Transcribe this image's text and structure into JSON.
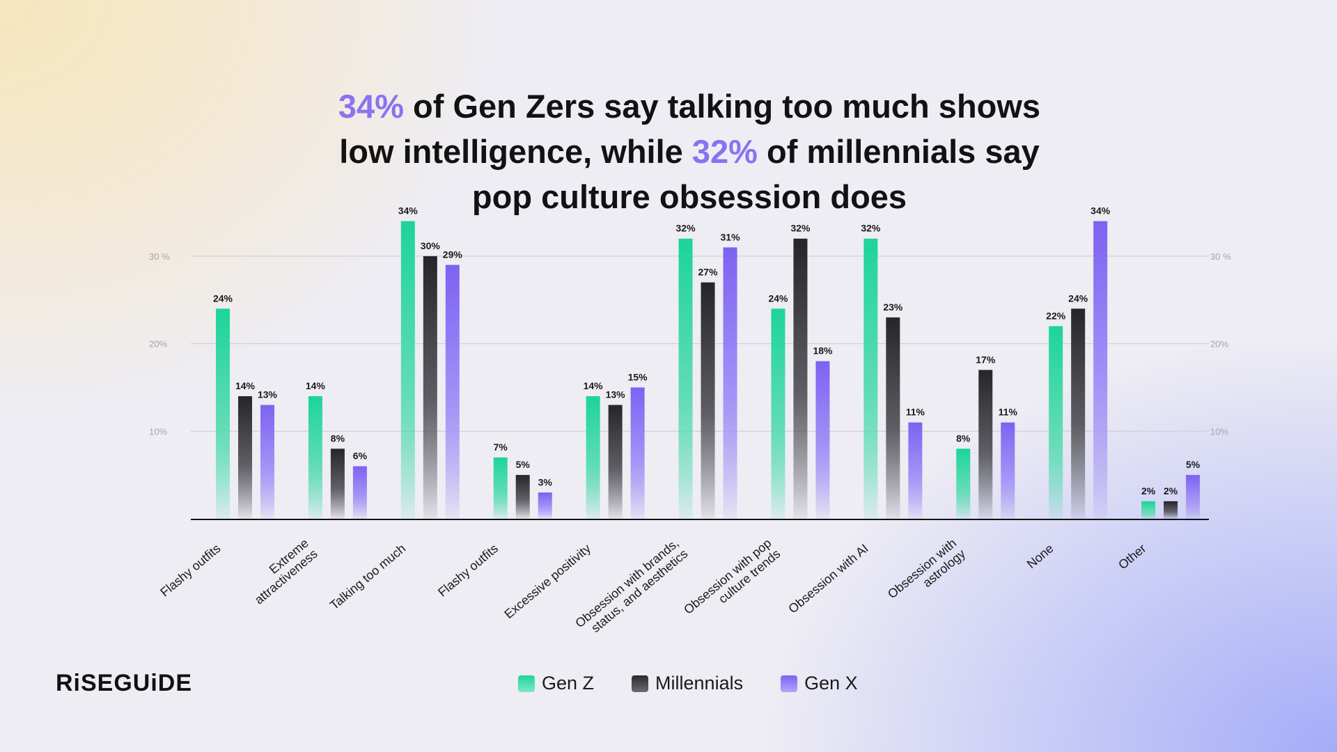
{
  "headline": {
    "pct1": "34%",
    "part1": " of Gen Zers say talking too much shows low intelligence, while ",
    "pct2": "32%",
    "part2": " of millennials say pop culture obsession does"
  },
  "brand": {
    "logo_text": "RiSEGUiDE"
  },
  "legend": {
    "genz_label": "Gen Z",
    "millennials_label": "Millennials",
    "genx_label": "Gen X"
  },
  "colors": {
    "genz": "#1dd49a",
    "millennials": "#2a2a2e",
    "genx": "#7d62f2",
    "highlight": "#8a72f0"
  },
  "chart_data": {
    "type": "bar",
    "categories": [
      [
        "Flashy outfits"
      ],
      [
        "Extreme",
        "attractiveness"
      ],
      [
        "Talking too much"
      ],
      [
        "Flashy outfits"
      ],
      [
        "Excessive positivity"
      ],
      [
        "Obsession with brands,",
        "status, and aesthetics"
      ],
      [
        "Obsession with pop",
        "culture trends"
      ],
      [
        "Obsession with AI"
      ],
      [
        "Obsession with",
        "astrology"
      ],
      [
        "None"
      ],
      [
        "Other"
      ]
    ],
    "series": [
      {
        "name": "Gen Z",
        "values": [
          24,
          14,
          34,
          7,
          14,
          32,
          24,
          32,
          8,
          22,
          2
        ]
      },
      {
        "name": "Millennials",
        "values": [
          14,
          8,
          30,
          5,
          13,
          27,
          32,
          23,
          17,
          24,
          2
        ]
      },
      {
        "name": "Gen X",
        "values": [
          13,
          6,
          29,
          3,
          15,
          31,
          18,
          11,
          11,
          34,
          5
        ]
      }
    ],
    "value_labels": [
      [
        "24%",
        "14%",
        "34%",
        "7%",
        "14%",
        "32%",
        "24%",
        "32%",
        "8%",
        "22%",
        "2%"
      ],
      [
        "14%",
        "8%",
        "30%",
        "5%",
        "13%",
        "27%",
        "32%",
        "23%",
        "17%",
        "24%",
        "2%"
      ],
      [
        "13%",
        "6%",
        "29%",
        "3%",
        "15%",
        "31%",
        "18%",
        "11%",
        "11%",
        "34%",
        "5%"
      ]
    ],
    "y_ticks": [
      {
        "value": 10,
        "label": "10%"
      },
      {
        "value": 20,
        "label": "20%"
      },
      {
        "value": 30,
        "label": "30 %"
      }
    ],
    "ylim": [
      0,
      35
    ],
    "grid": true,
    "legend_position": "bottom"
  }
}
